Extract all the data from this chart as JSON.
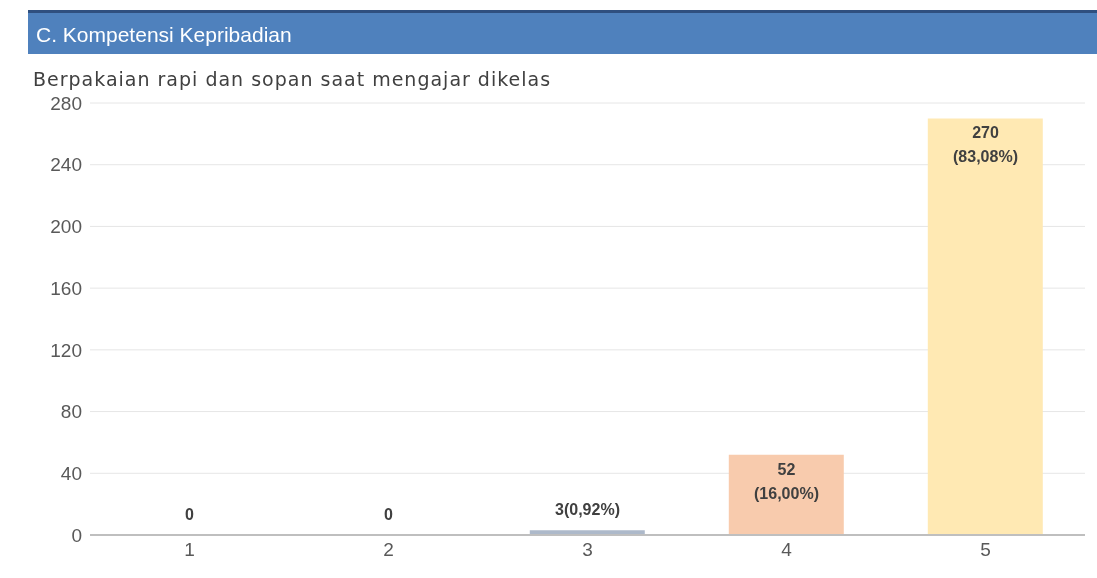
{
  "chart_data": {
    "type": "bar",
    "title": "C. Kompetensi Kepribadian",
    "subtitle": "Berpakaian rapi dan sopan saat mengajar dikelas",
    "categories": [
      "1",
      "2",
      "3",
      "4",
      "5"
    ],
    "values": [
      0,
      0,
      3,
      52,
      270
    ],
    "colors": [
      "#b4c7e7",
      "#b4c7e7",
      "#adb9ca",
      "#f8cbad",
      "#ffe9b3"
    ],
    "value_labels": [
      "0",
      "0",
      "3(0,92%)",
      "52\n(16,00%)",
      "270\n(83,08%)"
    ],
    "ylim": [
      0,
      280
    ],
    "yticks": [
      0,
      40,
      80,
      120,
      160,
      200,
      240,
      280
    ],
    "grid": "y"
  }
}
